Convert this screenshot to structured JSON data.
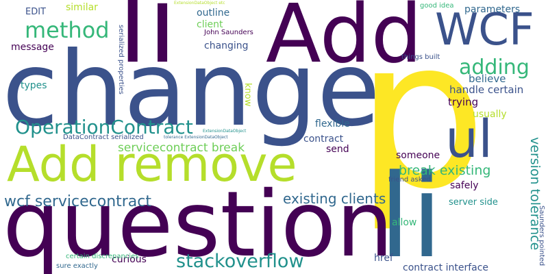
{
  "palette": {
    "dark_purple": "#440154",
    "indigo": "#3b528b",
    "teal_blue": "#31688e",
    "teal": "#21918c",
    "green": "#35b779",
    "light_green": "#6ece58",
    "yellow_green": "#b5de2b",
    "yellow": "#fde725"
  },
  "words": [
    {
      "id": "p",
      "text": "p"
    },
    {
      "id": "change",
      "text": "change"
    },
    {
      "id": "question",
      "text": "question"
    },
    {
      "id": "li-big",
      "text": "li"
    },
    {
      "id": "add-big",
      "text": "Add"
    },
    {
      "id": "li-top",
      "text": "li"
    },
    {
      "id": "add-remove",
      "text": "Add remove"
    },
    {
      "id": "wcf",
      "text": "WCF"
    },
    {
      "id": "ul",
      "text": "ul"
    },
    {
      "id": "method",
      "text": "method"
    },
    {
      "id": "operationcontract",
      "text": "OperationContract"
    },
    {
      "id": "adding",
      "text": "adding"
    },
    {
      "id": "stackoverflow",
      "text": "stackoverflow"
    },
    {
      "id": "wcf-servicecontract",
      "text": "wcf servicecontract"
    },
    {
      "id": "existing-clients",
      "text": "existing clients"
    },
    {
      "id": "break-existing",
      "text": "break existing"
    },
    {
      "id": "servicecontract-break",
      "text": "servicecontract break"
    },
    {
      "id": "version-tolerance",
      "text": "version tolerance"
    },
    {
      "id": "handle-certain",
      "text": "handle certain"
    },
    {
      "id": "believe",
      "text": "believe"
    },
    {
      "id": "trying",
      "text": "trying"
    },
    {
      "id": "contract-interface",
      "text": "contract interface"
    },
    {
      "id": "outline",
      "text": "outline"
    },
    {
      "id": "changing",
      "text": "changing"
    },
    {
      "id": "client",
      "text": "client"
    },
    {
      "id": "parameters",
      "text": "parameters"
    },
    {
      "id": "usually",
      "text": "usually"
    },
    {
      "id": "flexible",
      "text": "flexible"
    },
    {
      "id": "contract",
      "text": "contract"
    },
    {
      "id": "send",
      "text": "send"
    },
    {
      "id": "someone",
      "text": "someone"
    },
    {
      "id": "safely",
      "text": "safely"
    },
    {
      "id": "server-side",
      "text": "server side"
    },
    {
      "id": "allow",
      "text": "allow"
    },
    {
      "id": "href",
      "text": "href"
    },
    {
      "id": "curious",
      "text": "curious"
    },
    {
      "id": "message",
      "text": "message"
    },
    {
      "id": "types",
      "text": "types"
    },
    {
      "id": "edit",
      "text": "EDIT"
    },
    {
      "id": "similar",
      "text": "similar"
    },
    {
      "id": "know",
      "text": "know"
    },
    {
      "id": "john-saunders",
      "text": "John Saunders"
    },
    {
      "id": "good-idea",
      "text": "good idea"
    },
    {
      "id": "things-built",
      "text": "things built"
    },
    {
      "id": "friend-asked",
      "text": "friend asked"
    },
    {
      "id": "serialized-properties",
      "text": "serialized properties"
    },
    {
      "id": "datacontract-serialized",
      "text": "DataContract serialized"
    },
    {
      "id": "certain-discrepancies",
      "text": "certain discrepancies"
    },
    {
      "id": "sure-exactly",
      "text": "sure exactly"
    },
    {
      "id": "saunders-pointed",
      "text": "Saunders pointed"
    },
    {
      "id": "extensiondataobject-etc",
      "text": "ExtensionDataObject etc"
    },
    {
      "id": "tolerance-extensiondataobject",
      "text": "tolerance ExtensionDataObject"
    },
    {
      "id": "extensiondataobject",
      "text": "ExtensionDataObject"
    }
  ]
}
